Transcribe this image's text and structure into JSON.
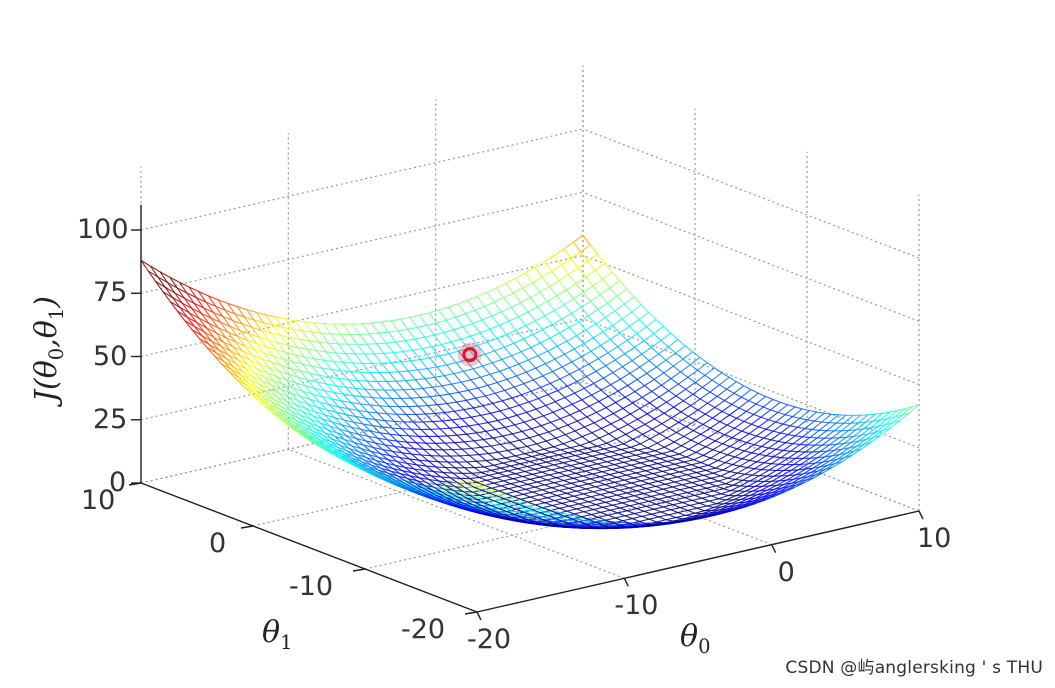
{
  "chart_data": {
    "type": "surface",
    "z_label": "J(θ0,θ1)",
    "x_label": "θ0",
    "y_label": "θ1",
    "x_range": [
      -20,
      10
    ],
    "y_range": [
      -20,
      10
    ],
    "z_range": [
      0,
      100
    ],
    "x_ticks": [
      "-20",
      "-10",
      "0",
      "10"
    ],
    "y_ticks": [
      "-20",
      "-10",
      "0",
      "10"
    ],
    "z_ticks": [
      "0",
      "25",
      "50",
      "75",
      "100"
    ],
    "grid": true,
    "surface_min": {
      "theta0": -7,
      "theta1": -6,
      "J": 7
    },
    "surface_corner_values": {
      "theta0_10_theta1_10": 58,
      "theta0_-20_theta1_10": 88,
      "theta0_-20_theta1_-20": 52,
      "theta0_10_theta1_-20": 42
    },
    "colormap": "jet",
    "marker_point": {
      "theta0": -3,
      "theta1": 3,
      "J": 40,
      "color": "#e0142a"
    }
  },
  "watermark": "CSDN @屿anglersking ' s THU"
}
